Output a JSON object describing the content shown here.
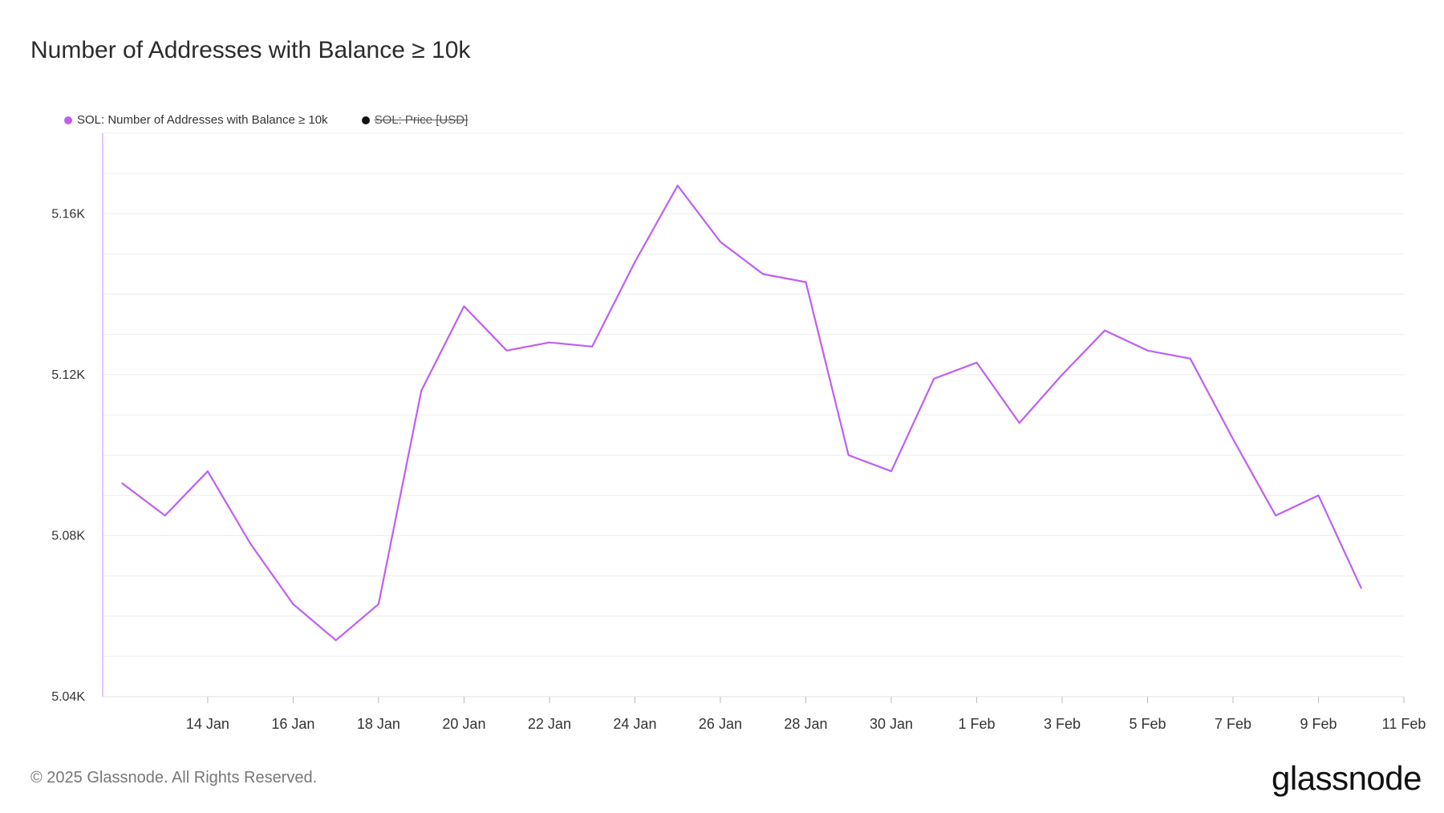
{
  "title": "Number of Addresses with Balance ≥ 10k",
  "legend": [
    {
      "label": "SOL: Number of Addresses with Balance ≥ 10k",
      "color": "#c05ef2",
      "struck": false
    },
    {
      "label": "SOL: Price [USD]",
      "color": "#111111",
      "struck": true
    }
  ],
  "footer": {
    "copyright": "© 2025 Glassnode. All Rights Reserved.",
    "brand": "glassnode"
  },
  "chart_data": {
    "type": "line",
    "series": [
      {
        "name": "SOL: Number of Addresses with Balance ≥ 10k",
        "color": "#c05ef2",
        "x": [
          "2025-01-12",
          "2025-01-13",
          "2025-01-14",
          "2025-01-15",
          "2025-01-16",
          "2025-01-17",
          "2025-01-18",
          "2025-01-19",
          "2025-01-20",
          "2025-01-21",
          "2025-01-22",
          "2025-01-23",
          "2025-01-24",
          "2025-01-25",
          "2025-01-26",
          "2025-01-27",
          "2025-01-28",
          "2025-01-29",
          "2025-01-30",
          "2025-01-31",
          "2025-02-01",
          "2025-02-02",
          "2025-02-03",
          "2025-02-04",
          "2025-02-05",
          "2025-02-06",
          "2025-02-07",
          "2025-02-08",
          "2025-02-09",
          "2025-02-10"
        ],
        "values": [
          5093,
          5085,
          5096,
          5078,
          5063,
          5054,
          5063,
          5116,
          5137,
          5126,
          5128,
          5127,
          5148,
          5167,
          5153,
          5145,
          5143,
          5100,
          5096,
          5119,
          5123,
          5108,
          5120,
          5131,
          5126,
          5124,
          5104,
          5085,
          5090,
          5067
        ]
      }
    ],
    "x_ticks": [
      "14 Jan",
      "16 Jan",
      "18 Jan",
      "20 Jan",
      "22 Jan",
      "24 Jan",
      "26 Jan",
      "28 Jan",
      "30 Jan",
      "1 Feb",
      "3 Feb",
      "5 Feb",
      "7 Feb",
      "9 Feb",
      "11 Feb"
    ],
    "x_tick_dates": [
      "2025-01-14",
      "2025-01-16",
      "2025-01-18",
      "2025-01-20",
      "2025-01-22",
      "2025-01-24",
      "2025-01-26",
      "2025-01-28",
      "2025-01-30",
      "2025-02-01",
      "2025-02-03",
      "2025-02-05",
      "2025-02-07",
      "2025-02-09",
      "2025-02-11"
    ],
    "y_ticks": [
      "5.04K",
      "5.08K",
      "5.12K",
      "5.16K"
    ],
    "y_tick_values": [
      5040,
      5080,
      5120,
      5160
    ],
    "ylim": [
      5040,
      5180
    ],
    "xlim": [
      "2025-01-11T13:00",
      "2025-02-11T00:00"
    ],
    "grid": true,
    "legend_position": "top-left"
  }
}
